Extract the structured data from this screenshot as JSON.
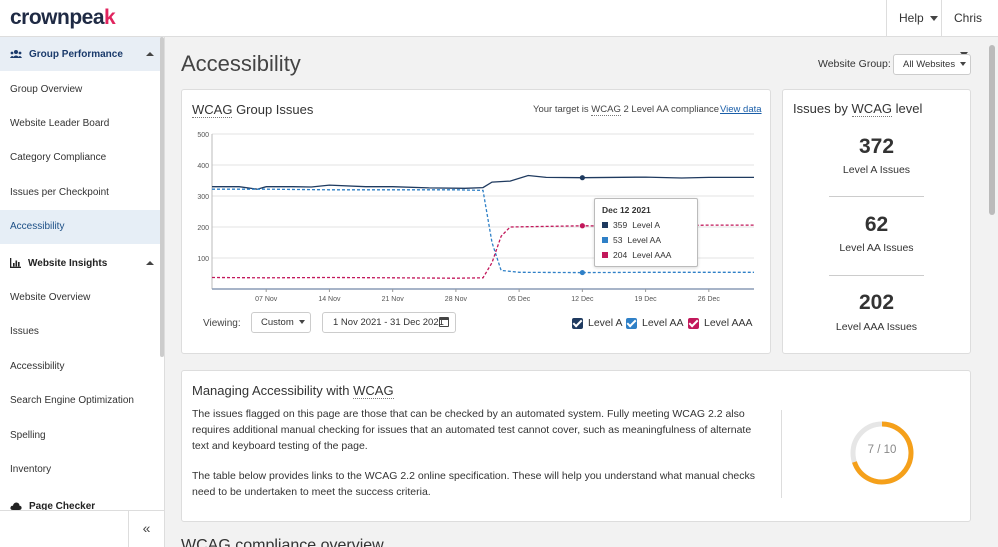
{
  "app": {
    "logo_text": "crownpea",
    "logo_accent": "k"
  },
  "topbar": {
    "help_label": "Help",
    "user_label": "Chris"
  },
  "sidebar": {
    "section1": "Group Performance",
    "section1_items": [
      "Group Overview",
      "Website Leader Board",
      "Category Compliance",
      "Issues per Checkpoint",
      "Accessibility"
    ],
    "section2": "Website Insights",
    "section2_items": [
      "Website Overview",
      "Issues",
      "Accessibility",
      "Search Engine Optimization",
      "Spelling",
      "Inventory"
    ],
    "section3": "Page Checker",
    "collapse_icon": "«"
  },
  "page": {
    "title": "Accessibility",
    "website_group_label": "Website Group:",
    "website_group_value": "All Websites"
  },
  "chart_card": {
    "title_prefix": "WCAG",
    "title_suffix": " Group Issues",
    "target_prefix": "Your target is ",
    "target_abbr": "WCAG",
    "target_suffix": " 2 Level AA compliance",
    "view_data": "View data",
    "viewing_label": "Viewing:",
    "range_select": "Custom",
    "date_range": "1 Nov 2021 - 31 Dec 2021",
    "legend": [
      "Level A",
      "Level AA",
      "Level AAA"
    ]
  },
  "tooltip": {
    "title": "Dec 12 2021",
    "rows": [
      {
        "value": "359",
        "label": "Level A"
      },
      {
        "value": "53",
        "label": "Level AA"
      },
      {
        "value": "204",
        "label": "Level AAA"
      }
    ]
  },
  "chart_data": {
    "type": "line",
    "x_tick_labels": [
      "07 Nov",
      "14 Nov",
      "21 Nov",
      "28 Nov",
      "05 Dec",
      "12 Dec",
      "19 Dec",
      "26 Dec"
    ],
    "y_ticks": [
      100,
      200,
      300,
      400,
      500
    ],
    "ylim": [
      0,
      500
    ],
    "xlim": [
      "2021-11-01",
      "2021-12-31"
    ],
    "grid": true,
    "series": [
      {
        "name": "Level A",
        "color": "#1f3a5f",
        "style": "solid",
        "points": [
          [
            "2021-11-01",
            330
          ],
          [
            "2021-11-04",
            330
          ],
          [
            "2021-11-06",
            322
          ],
          [
            "2021-11-07",
            330
          ],
          [
            "2021-11-10",
            330
          ],
          [
            "2021-11-12",
            329
          ],
          [
            "2021-11-14",
            335
          ],
          [
            "2021-11-18",
            330
          ],
          [
            "2021-11-21",
            330
          ],
          [
            "2021-11-25",
            326
          ],
          [
            "2021-11-29",
            325
          ],
          [
            "2021-12-01",
            327
          ],
          [
            "2021-12-02",
            345
          ],
          [
            "2021-12-04",
            348
          ],
          [
            "2021-12-06",
            366
          ],
          [
            "2021-12-08",
            360
          ],
          [
            "2021-12-12",
            359
          ],
          [
            "2021-12-19",
            361
          ],
          [
            "2021-12-23",
            358
          ],
          [
            "2021-12-26",
            360
          ],
          [
            "2021-12-31",
            360
          ]
        ]
      },
      {
        "name": "Level AA",
        "color": "#2f80c7",
        "style": "dashed",
        "points": [
          [
            "2021-11-01",
            322
          ],
          [
            "2021-11-07",
            322
          ],
          [
            "2021-11-14",
            320
          ],
          [
            "2021-11-21",
            320
          ],
          [
            "2021-11-28",
            320
          ],
          [
            "2021-12-01",
            318
          ],
          [
            "2021-12-02",
            150
          ],
          [
            "2021-12-03",
            60
          ],
          [
            "2021-12-05",
            54
          ],
          [
            "2021-12-12",
            53
          ],
          [
            "2021-12-19",
            54
          ],
          [
            "2021-12-26",
            54
          ],
          [
            "2021-12-31",
            54
          ]
        ]
      },
      {
        "name": "Level AAA",
        "color": "#c2185b",
        "style": "dashed",
        "points": [
          [
            "2021-11-01",
            37
          ],
          [
            "2021-11-07",
            36
          ],
          [
            "2021-11-14",
            37
          ],
          [
            "2021-11-21",
            36
          ],
          [
            "2021-11-28",
            35
          ],
          [
            "2021-12-01",
            36
          ],
          [
            "2021-12-02",
            85
          ],
          [
            "2021-12-03",
            170
          ],
          [
            "2021-12-04",
            200
          ],
          [
            "2021-12-12",
            204
          ],
          [
            "2021-12-19",
            203
          ],
          [
            "2021-12-26",
            206
          ],
          [
            "2021-12-31",
            206
          ]
        ]
      }
    ],
    "highlight_date": "2021-12-12"
  },
  "wcag_level_card": {
    "title_prefix": "Issues by ",
    "title_abbr": "WCAG",
    "title_suffix": " level",
    "stats": [
      {
        "value": "372",
        "label": "Level A Issues"
      },
      {
        "value": "62",
        "label": "Level AA Issues"
      },
      {
        "value": "202",
        "label": "Level AAA Issues"
      }
    ]
  },
  "managing_card": {
    "title_prefix": "Managing Accessibility with ",
    "title_abbr": "WCAG",
    "para1_line1": "The issues flagged on this page are those that can be checked by an automated system. Fully meeting WCAG 2.2 also",
    "para1_line2": "requires additional manual checking for issues that an automated test cannot cover, such as meaningfulness of alternate",
    "para1_line3": "text and keyboard testing of the page.",
    "para2_line1": "The table below provides links to the WCAG 2.2 online specification. These will help you understand what manual checks",
    "para2_line2": "need to be undertaken to meet the success criteria.",
    "gauge_text": "7 / 10",
    "gauge_value": 7,
    "gauge_max": 10,
    "gauge_color": "#f5a01a"
  },
  "next_section_title": "WCAG compliance overview"
}
